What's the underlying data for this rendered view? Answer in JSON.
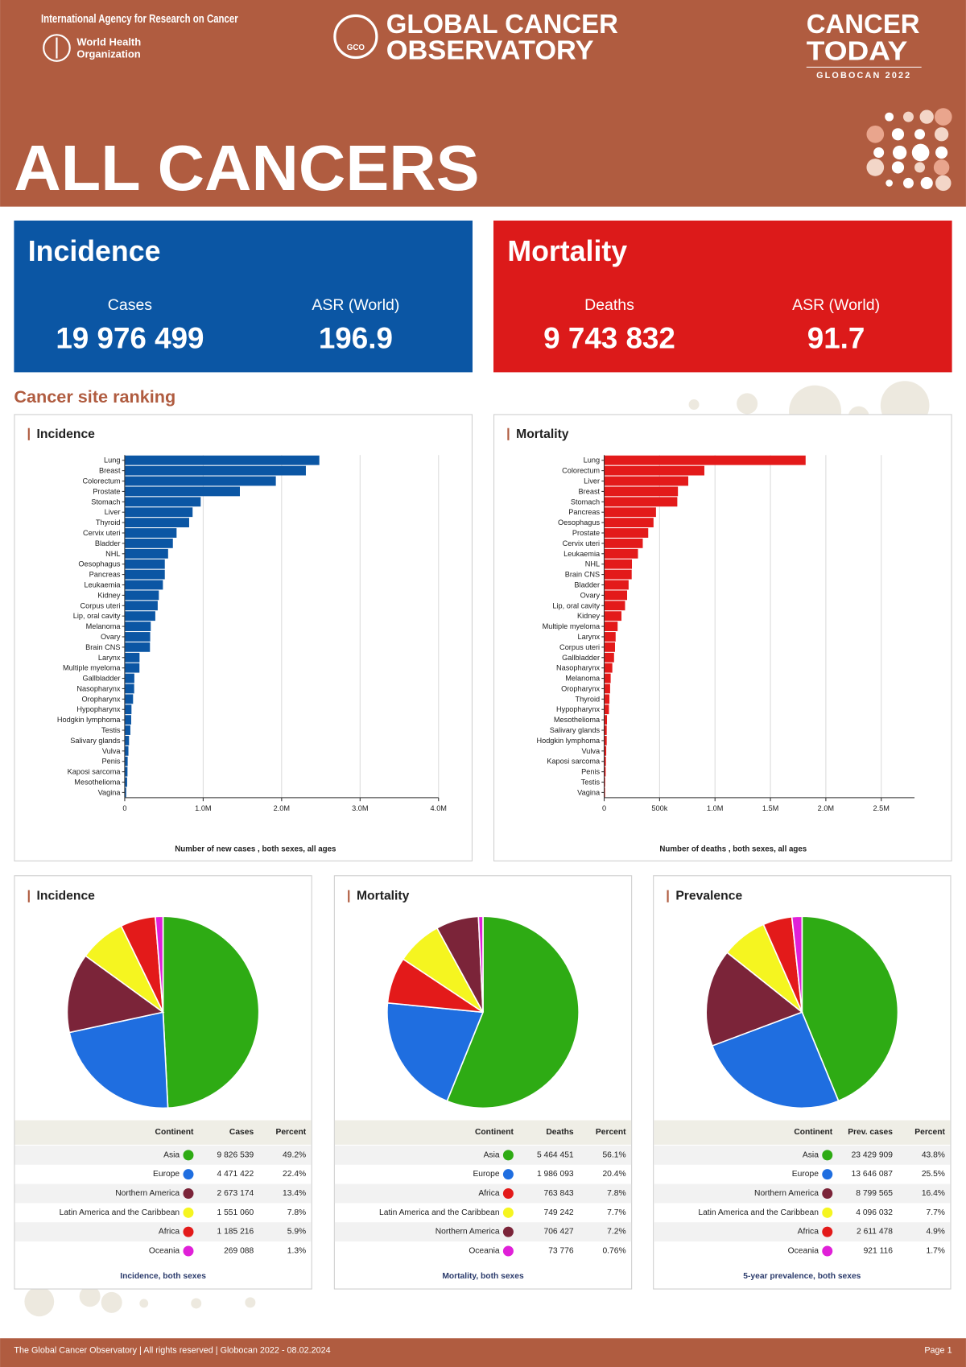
{
  "header": {
    "agency": "International Agency for Research on Cancer",
    "who": [
      "World Health",
      "Organization"
    ],
    "logo_text": "GCO",
    "observatory": [
      "GLOBAL CANCER",
      "OBSERVATORY"
    ],
    "product": [
      "CANCER",
      "TODAY"
    ],
    "edition": "GLOBOCAN 2022"
  },
  "title": "ALL CANCERS",
  "summary": [
    {
      "title": "Incidence",
      "color": "#0b56a4",
      "stats": [
        {
          "label": "Cases",
          "value": "19 976 499"
        },
        {
          "label": "ASR (World)",
          "value": "196.9"
        }
      ]
    },
    {
      "title": "Mortality",
      "color": "#dc1a1a",
      "stats": [
        {
          "label": "Deaths",
          "value": "9 743 832"
        },
        {
          "label": "ASR (World)",
          "value": "91.7"
        }
      ]
    }
  ],
  "section_title": "Cancer site ranking",
  "chart_data": [
    {
      "type": "bar",
      "orientation": "horizontal",
      "title": "Incidence",
      "color": "#0b56a4",
      "grid": true,
      "categories": [
        "Lung",
        "Breast",
        "Colorectum",
        "Prostate",
        "Stomach",
        "Liver",
        "Thyroid",
        "Cervix uteri",
        "Bladder",
        "NHL",
        "Oesophagus",
        "Pancreas",
        "Leukaemia",
        "Kidney",
        "Corpus uteri",
        "Lip, oral cavity",
        "Melanoma",
        "Ovary",
        "Brain CNS",
        "Larynx",
        "Multiple myeloma",
        "Gallbladder",
        "Nasopharynx",
        "Oropharynx",
        "Hypopharynx",
        "Hodgkin lymphoma",
        "Testis",
        "Salivary glands",
        "Vulva",
        "Penis",
        "Kaposi sarcoma",
        "Mesothelioma",
        "Vagina"
      ],
      "values": [
        2480675,
        2308897,
        1926118,
        1467854,
        968350,
        865269,
        821214,
        661021,
        613791,
        553010,
        511054,
        510992,
        486777,
        434840,
        420368,
        389846,
        331722,
        324603,
        321731,
        188960,
        187952,
        122491,
        120434,
        106316,
        86257,
        82409,
        72031,
        55083,
        47336,
        37699,
        35360,
        30618,
        18819
      ],
      "xlim": [
        0,
        4000000
      ],
      "xticks": [
        0,
        {
          "value": 1000000,
          "label": "1.0M"
        },
        {
          "value": 2000000,
          "label": "2.0M"
        },
        {
          "value": 3000000,
          "label": "3.0M"
        },
        {
          "value": 4000000,
          "label": "4.0M"
        }
      ],
      "xlabel": "Number of new cases , both sexes, all ages"
    },
    {
      "type": "bar",
      "orientation": "horizontal",
      "title": "Mortality",
      "color": "#e31a1a",
      "grid": true,
      "categories": [
        "Lung",
        "Colorectum",
        "Liver",
        "Breast",
        "Stomach",
        "Pancreas",
        "Oesophagus",
        "Prostate",
        "Cervix uteri",
        "Leukaemia",
        "NHL",
        "Brain CNS",
        "Bladder",
        "Ovary",
        "Lip, oral cavity",
        "Kidney",
        "Multiple myeloma",
        "Larynx",
        "Corpus uteri",
        "Gallbladder",
        "Nasopharynx",
        "Melanoma",
        "Oropharynx",
        "Thyroid",
        "Hypopharynx",
        "Mesothelioma",
        "Salivary glands",
        "Hodgkin lymphoma",
        "Vulva",
        "Kaposi sarcoma",
        "Penis",
        "Testis",
        "Vagina"
      ],
      "values": [
        1817469,
        903859,
        758725,
        665684,
        659853,
        467409,
        445129,
        397430,
        348189,
        305033,
        250475,
        248305,
        220349,
        206956,
        188438,
        155953,
        121388,
        103359,
        97723,
        89055,
        73476,
        58667,
        53607,
        47507,
        43109,
        25416,
        22933,
        22733,
        18579,
        15630,
        13661,
        9056,
        8240
      ],
      "xlim": [
        0,
        2800000
      ],
      "xticks": [
        0,
        {
          "value": 500000,
          "label": "500k"
        },
        {
          "value": 1000000,
          "label": "1.0M"
        },
        {
          "value": 1500000,
          "label": "1.5M"
        },
        {
          "value": 2000000,
          "label": "2.0M"
        },
        {
          "value": 2500000,
          "label": "2.5M"
        }
      ],
      "xlabel": "Number of deaths , both sexes, all ages"
    },
    {
      "type": "pie",
      "title": "Incidence",
      "categories": [
        "Asia",
        "Europe",
        "Northern America",
        "Latin America and the Caribbean",
        "Africa",
        "Oceania"
      ],
      "values": [
        49.2,
        22.4,
        13.4,
        7.8,
        5.9,
        1.3
      ],
      "value_labels": [
        "49.2%",
        "22.4%",
        "13.4%",
        "7.8%",
        "5.9%",
        "1.3%"
      ],
      "counts": [
        "9 826 539",
        "4 471 422",
        "2 673 174",
        "1 551 060",
        "1 185 216",
        "269 088"
      ],
      "colors": [
        "#2eab14",
        "#1f6ee0",
        "#7b2439",
        "#f5f520",
        "#e31a1a",
        "#e020d8"
      ],
      "columns": [
        "Continent",
        "Cases",
        "Percent"
      ],
      "caption": "Incidence, both sexes"
    },
    {
      "type": "pie",
      "title": "Mortality",
      "categories": [
        "Asia",
        "Europe",
        "Africa",
        "Latin America and the Caribbean",
        "Northern America",
        "Oceania"
      ],
      "values": [
        56.1,
        20.4,
        7.8,
        7.7,
        7.2,
        0.76
      ],
      "value_labels": [
        "56.1%",
        "20.4%",
        "7.8%",
        "7.7%",
        "7.2%",
        "0.76%"
      ],
      "counts": [
        "5 464 451",
        "1 986 093",
        "763 843",
        "749 242",
        "706 427",
        "73 776"
      ],
      "colors": [
        "#2eab14",
        "#1f6ee0",
        "#e31a1a",
        "#f5f520",
        "#7b2439",
        "#e020d8"
      ],
      "columns": [
        "Continent",
        "Deaths",
        "Percent"
      ],
      "caption": "Mortality, both sexes"
    },
    {
      "type": "pie",
      "title": "Prevalence",
      "categories": [
        "Asia",
        "Europe",
        "Northern America",
        "Latin America and the Caribbean",
        "Africa",
        "Oceania"
      ],
      "values": [
        43.8,
        25.5,
        16.4,
        7.7,
        4.9,
        1.7
      ],
      "value_labels": [
        "43.8%",
        "25.5%",
        "16.4%",
        "7.7%",
        "4.9%",
        "1.7%"
      ],
      "counts": [
        "23 429 909",
        "13 646 087",
        "8 799 565",
        "4 096 032",
        "2 611 478",
        "921 116"
      ],
      "colors": [
        "#2eab14",
        "#1f6ee0",
        "#7b2439",
        "#f5f520",
        "#e31a1a",
        "#e020d8"
      ],
      "columns": [
        "Continent",
        "Prev. cases",
        "Percent"
      ],
      "caption": "5-year prevalence, both sexes"
    }
  ],
  "footer": {
    "text": "The Global Cancer Observatory | All rights reserved | Globocan 2022 - 08.02.2024",
    "page": "Page 1"
  }
}
